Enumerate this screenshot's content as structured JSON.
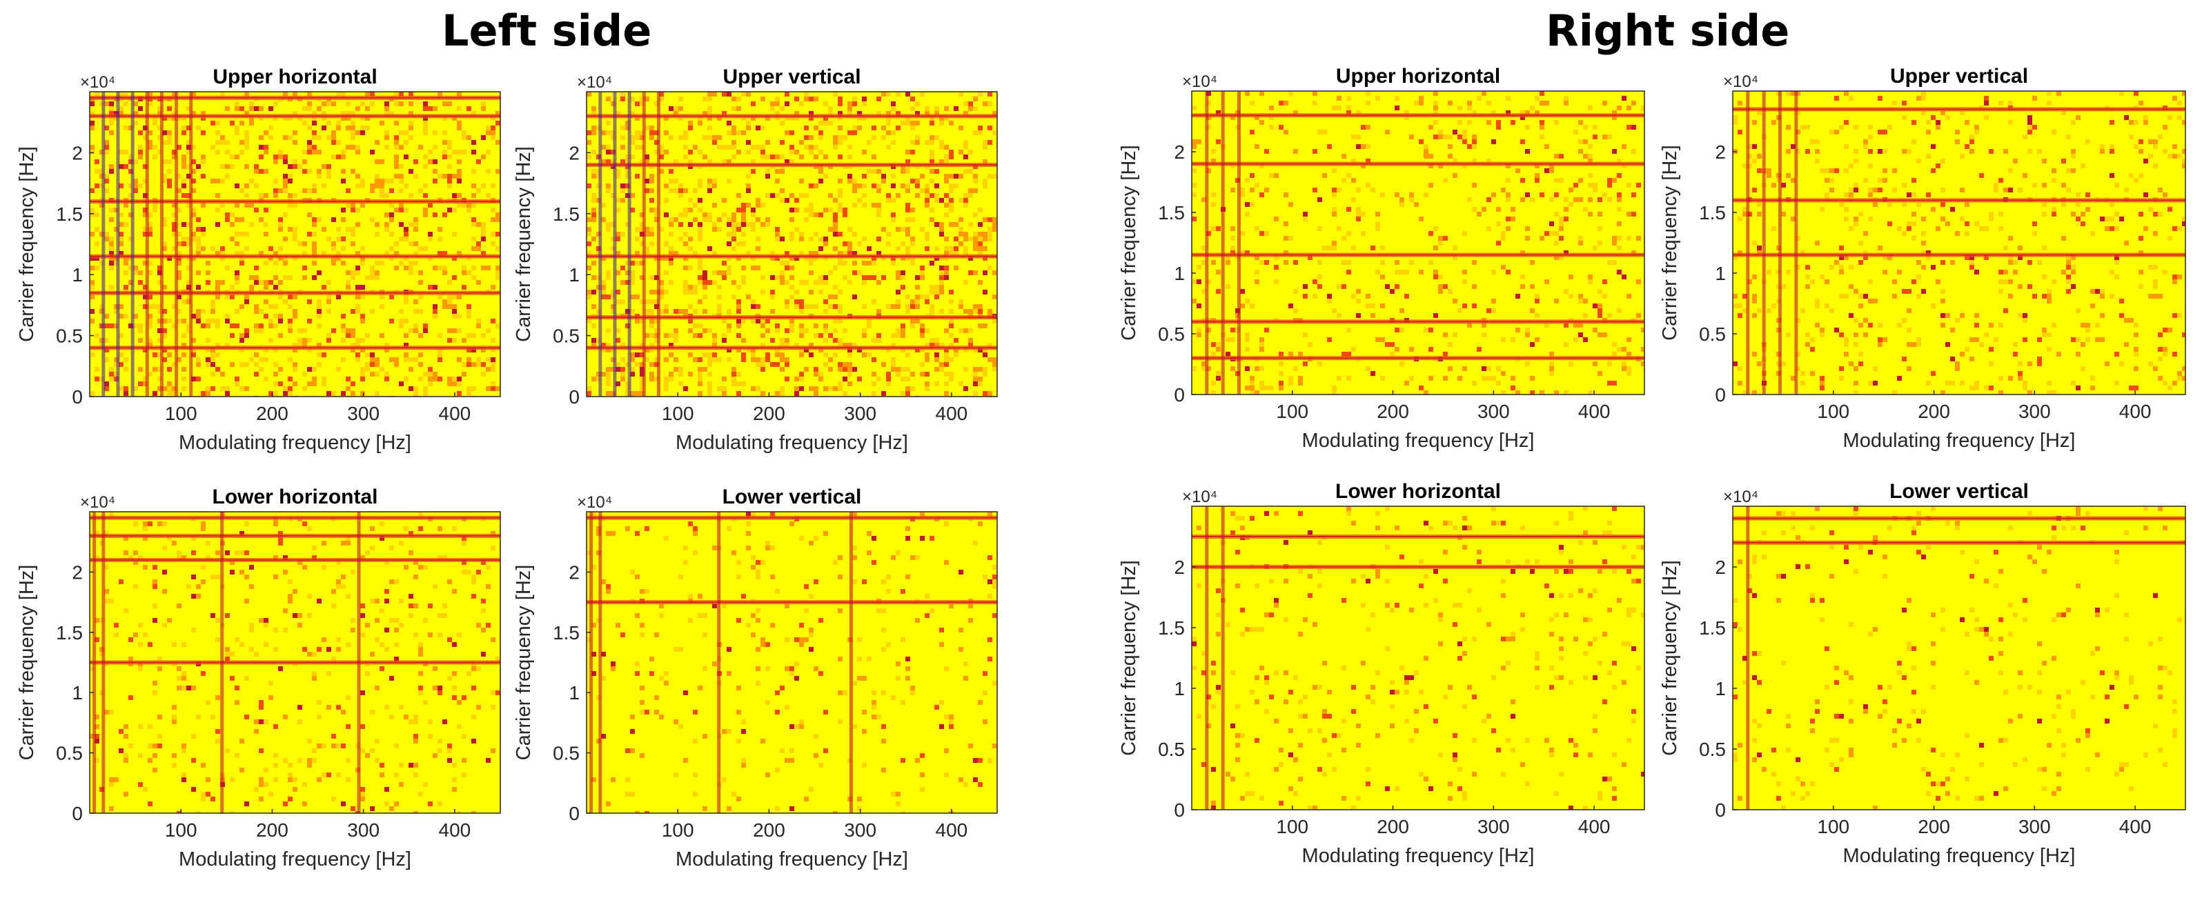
{
  "figure": {
    "side_titles": [
      "Left side",
      "Right side"
    ]
  },
  "chart_data": [
    {
      "type": "heatmap",
      "side": "Left side",
      "title": "Upper horizontal",
      "xlabel": "Modulating frequency [Hz]",
      "ylabel": "Carrier frequency [Hz]",
      "y_multiplier": "×10⁴",
      "xlim": [
        0,
        450
      ],
      "ylim": [
        0,
        2.5
      ],
      "xticks": [
        100,
        200,
        300,
        400
      ],
      "xtick_labels": [
        "100",
        "200",
        "300",
        "400"
      ],
      "yticks": [
        0,
        0.5,
        1,
        1.5,
        2
      ],
      "ytick_labels": [
        "0",
        "0.5",
        "1",
        "1.5",
        "2"
      ],
      "colorscale": [
        "#ffff00",
        "#ffd400",
        "#ff9a00",
        "#f24a10",
        "#c0182e",
        "#4a2a8c"
      ],
      "background_level": 0.45,
      "dominant_modulating_hz": [
        15,
        31,
        47,
        63,
        79,
        95,
        111
      ],
      "dominant_carrier_hz_1e4": [
        0.4,
        0.85,
        1.15,
        1.6,
        2.3,
        2.45
      ]
    },
    {
      "type": "heatmap",
      "side": "Left side",
      "title": "Upper vertical",
      "xlabel": "Modulating frequency [Hz]",
      "ylabel": "Carrier frequency [Hz]",
      "y_multiplier": "×10⁴",
      "xlim": [
        0,
        450
      ],
      "ylim": [
        0,
        2.5
      ],
      "xticks": [
        100,
        200,
        300,
        400
      ],
      "xtick_labels": [
        "100",
        "200",
        "300",
        "400"
      ],
      "yticks": [
        0,
        0.5,
        1,
        1.5,
        2
      ],
      "ytick_labels": [
        "0",
        "0.5",
        "1",
        "1.5",
        "2"
      ],
      "colorscale": [
        "#ffff00",
        "#ffd400",
        "#ff9a00",
        "#f24a10",
        "#c0182e",
        "#4a2a8c"
      ],
      "background_level": 0.5,
      "dominant_modulating_hz": [
        15,
        31,
        47,
        63,
        79
      ],
      "dominant_carrier_hz_1e4": [
        0.4,
        0.65,
        1.15,
        1.9,
        2.3
      ]
    },
    {
      "type": "heatmap",
      "side": "Left side",
      "title": "Lower horizontal",
      "xlabel": "Modulating frequency [Hz]",
      "ylabel": "Carrier frequency [Hz]",
      "y_multiplier": "×10⁴",
      "xlim": [
        0,
        450
      ],
      "ylim": [
        0,
        2.5
      ],
      "xticks": [
        100,
        200,
        300,
        400
      ],
      "xtick_labels": [
        "100",
        "200",
        "300",
        "400"
      ],
      "yticks": [
        0,
        0.5,
        1,
        1.5,
        2
      ],
      "ytick_labels": [
        "0",
        "0.5",
        "1",
        "1.5",
        "2"
      ],
      "colorscale": [
        "#ffff00",
        "#ffd400",
        "#ff9a00",
        "#f24a10",
        "#c0182e",
        "#4a2a8c"
      ],
      "background_level": 0.18,
      "dominant_modulating_hz": [
        5,
        15,
        145,
        295
      ],
      "dominant_carrier_hz_1e4": [
        1.25,
        2.1,
        2.3,
        2.45
      ]
    },
    {
      "type": "heatmap",
      "side": "Left side",
      "title": "Lower vertical",
      "xlabel": "Modulating frequency [Hz]",
      "ylabel": "Carrier frequency [Hz]",
      "y_multiplier": "×10⁴",
      "xlim": [
        0,
        450
      ],
      "ylim": [
        0,
        2.5
      ],
      "xticks": [
        100,
        200,
        300,
        400
      ],
      "xtick_labels": [
        "100",
        "200",
        "300",
        "400"
      ],
      "yticks": [
        0,
        0.5,
        1,
        1.5,
        2
      ],
      "ytick_labels": [
        "0",
        "0.5",
        "1",
        "1.5",
        "2"
      ],
      "colorscale": [
        "#ffff00",
        "#ffd400",
        "#ff9a00",
        "#f24a10",
        "#c0182e",
        "#4a2a8c"
      ],
      "background_level": 0.12,
      "dominant_modulating_hz": [
        5,
        15,
        145,
        290
      ],
      "dominant_carrier_hz_1e4": [
        1.75,
        2.45
      ]
    },
    {
      "type": "heatmap",
      "side": "Right side",
      "title": "Upper horizontal",
      "xlabel": "Modulating frequency [Hz]",
      "ylabel": "Carrier frequency [Hz]",
      "y_multiplier": "×10⁴",
      "xlim": [
        0,
        450
      ],
      "ylim": [
        0,
        2.5
      ],
      "xticks": [
        100,
        200,
        300,
        400
      ],
      "xtick_labels": [
        "100",
        "200",
        "300",
        "400"
      ],
      "yticks": [
        0,
        0.5,
        1,
        1.5,
        2
      ],
      "ytick_labels": [
        "0",
        "0.5",
        "1",
        "1.5",
        "2"
      ],
      "colorscale": [
        "#ffff00",
        "#ffd400",
        "#ff9a00",
        "#f24a10",
        "#c0182e",
        "#4a2a8c"
      ],
      "background_level": 0.22,
      "dominant_modulating_hz": [
        15,
        31,
        47
      ],
      "dominant_carrier_hz_1e4": [
        0.3,
        0.6,
        1.15,
        1.9,
        2.3
      ]
    },
    {
      "type": "heatmap",
      "side": "Right side",
      "title": "Upper vertical",
      "xlabel": "Modulating frequency [Hz]",
      "ylabel": "Carrier frequency [Hz]",
      "y_multiplier": "×10⁴",
      "xlim": [
        0,
        450
      ],
      "ylim": [
        0,
        2.5
      ],
      "xticks": [
        100,
        200,
        300,
        400
      ],
      "xtick_labels": [
        "100",
        "200",
        "300",
        "400"
      ],
      "yticks": [
        0,
        0.5,
        1,
        1.5,
        2
      ],
      "ytick_labels": [
        "0",
        "0.5",
        "1",
        "1.5",
        "2"
      ],
      "colorscale": [
        "#ffff00",
        "#ffd400",
        "#ff9a00",
        "#f24a10",
        "#c0182e",
        "#4a2a8c"
      ],
      "background_level": 0.22,
      "dominant_modulating_hz": [
        15,
        31,
        47,
        63
      ],
      "dominant_carrier_hz_1e4": [
        1.15,
        1.6,
        2.35
      ]
    },
    {
      "type": "heatmap",
      "side": "Right side",
      "title": "Lower horizontal",
      "xlabel": "Modulating frequency [Hz]",
      "ylabel": "Carrier frequency [Hz]",
      "y_multiplier": "×10⁴",
      "xlim": [
        0,
        450
      ],
      "ylim": [
        0,
        2.5
      ],
      "xticks": [
        100,
        200,
        300,
        400
      ],
      "xtick_labels": [
        "100",
        "200",
        "300",
        "400"
      ],
      "yticks": [
        0,
        0.5,
        1,
        1.5,
        2
      ],
      "ytick_labels": [
        "0",
        "0.5",
        "1",
        "1.5",
        "2"
      ],
      "colorscale": [
        "#ffff00",
        "#ffd400",
        "#ff9a00",
        "#f24a10",
        "#c0182e",
        "#4a2a8c"
      ],
      "background_level": 0.12,
      "dominant_modulating_hz": [
        15,
        31
      ],
      "dominant_carrier_hz_1e4": [
        2.0,
        2.25
      ]
    },
    {
      "type": "heatmap",
      "side": "Right side",
      "title": "Lower vertical",
      "xlabel": "Modulating frequency [Hz]",
      "ylabel": "Carrier frequency [Hz]",
      "y_multiplier": "×10⁴",
      "xlim": [
        0,
        450
      ],
      "ylim": [
        0,
        2.5
      ],
      "xticks": [
        100,
        200,
        300,
        400
      ],
      "xtick_labels": [
        "100",
        "200",
        "300",
        "400"
      ],
      "yticks": [
        0,
        0.5,
        1,
        1.5,
        2
      ],
      "ytick_labels": [
        "0",
        "0.5",
        "1",
        "1.5",
        "2"
      ],
      "colorscale": [
        "#ffff00",
        "#ffd400",
        "#ff9a00",
        "#f24a10",
        "#c0182e",
        "#4a2a8c"
      ],
      "background_level": 0.1,
      "dominant_modulating_hz": [
        15
      ],
      "dominant_carrier_hz_1e4": [
        2.2,
        2.4
      ]
    }
  ]
}
